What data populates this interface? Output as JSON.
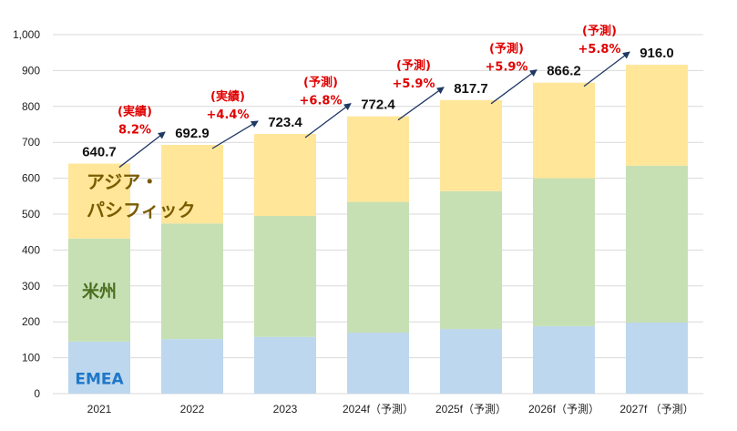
{
  "chart_data": {
    "type": "bar",
    "stacked": true,
    "categories": [
      "2021",
      "2022",
      "2023",
      "2024f（予測）",
      "2025f（予測）",
      "2026f（予測）",
      "2027f （予測）"
    ],
    "series": [
      {
        "name": "EMEA",
        "color": "#bdd7ee",
        "label_color": "#1f77c8",
        "values": [
          145,
          152,
          158,
          170,
          180,
          188,
          198
        ]
      },
      {
        "name": "米州",
        "color": "#c6e0b4",
        "label_color": "#4a6e1e",
        "values": [
          287,
          322,
          337,
          364,
          384,
          412,
          437
        ]
      },
      {
        "name": "アジア・パシフィック",
        "label_lines": [
          "アジア・",
          "パシフィック"
        ],
        "color": "#ffe699",
        "label_color": "#7a5c00",
        "values": [
          208.7,
          218.9,
          228.4,
          238.4,
          253.7,
          266.2,
          281.0
        ]
      }
    ],
    "totals": [
      "640.7",
      "692.9",
      "723.4",
      "772.4",
      "817.7",
      "866.2",
      "916.0"
    ],
    "growth_labels": [
      {
        "line1": "(実績)",
        "line2": "8.2%"
      },
      {
        "line1": "(実績)",
        "line2": "+4.4%"
      },
      {
        "line1": "(予測)",
        "line2": "+6.8%"
      },
      {
        "line1": "(予測)",
        "line2": "+5.9%"
      },
      {
        "line1": "(予測)",
        "line2": "+5.9%"
      },
      {
        "line1": "(予測)",
        "line2": "+5.8%"
      }
    ],
    "ylim": [
      0,
      1000
    ],
    "yticks": [
      "0",
      "100",
      "200",
      "300",
      "400",
      "500",
      "600",
      "700",
      "800",
      "900",
      "1,000"
    ],
    "grid": true,
    "colors": {
      "grid": "#d9d9d9",
      "arrow": "#1f3864",
      "growth": "#e00000"
    }
  }
}
